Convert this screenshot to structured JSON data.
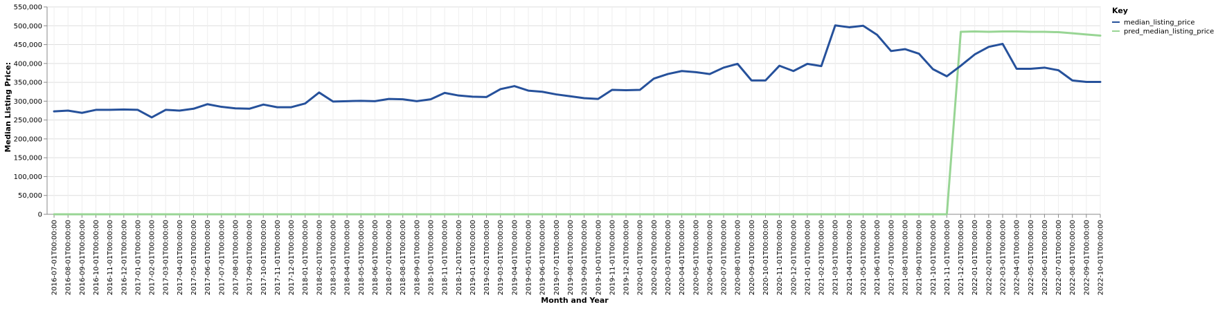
{
  "chart_data": {
    "type": "line",
    "xlabel": "Month and Year",
    "ylabel": "Median Listing Price:",
    "ylim": [
      0,
      550000
    ],
    "y_ticks": [
      "0",
      "50,000",
      "100,000",
      "150,000",
      "200,000",
      "250,000",
      "300,000",
      "350,000",
      "400,000",
      "450,000",
      "500,000",
      "550,000"
    ],
    "y_tick_values": [
      0,
      50000,
      100000,
      150000,
      200000,
      250000,
      300000,
      350000,
      400000,
      450000,
      500000,
      550000
    ],
    "grid": true,
    "legend": {
      "title": "Key",
      "placement": "right"
    },
    "x": [
      "2016-07-01T00:00:00",
      "2016-08-01T00:00:00",
      "2016-09-01T00:00:00",
      "2016-10-01T00:00:00",
      "2016-11-01T00:00:00",
      "2016-12-01T00:00:00",
      "2017-01-01T00:00:00",
      "2017-02-01T00:00:00",
      "2017-03-01T00:00:00",
      "2017-04-01T00:00:00",
      "2017-05-01T00:00:00",
      "2017-06-01T00:00:00",
      "2017-07-01T00:00:00",
      "2017-08-01T00:00:00",
      "2017-09-01T00:00:00",
      "2017-10-01T00:00:00",
      "2017-11-01T00:00:00",
      "2017-12-01T00:00:00",
      "2018-01-01T00:00:00",
      "2018-02-01T00:00:00",
      "2018-03-01T00:00:00",
      "2018-04-01T00:00:00",
      "2018-05-01T00:00:00",
      "2018-06-01T00:00:00",
      "2018-07-01T00:00:00",
      "2018-08-01T00:00:00",
      "2018-09-01T00:00:00",
      "2018-10-01T00:00:00",
      "2018-11-01T00:00:00",
      "2018-12-01T00:00:00",
      "2019-01-01T00:00:00",
      "2019-02-01T00:00:00",
      "2019-03-01T00:00:00",
      "2019-04-01T00:00:00",
      "2019-05-01T00:00:00",
      "2019-06-01T00:00:00",
      "2019-07-01T00:00:00",
      "2019-08-01T00:00:00",
      "2019-09-01T00:00:00",
      "2019-10-01T00:00:00",
      "2019-11-01T00:00:00",
      "2019-12-01T00:00:00",
      "2020-01-01T00:00:00",
      "2020-02-01T00:00:00",
      "2020-03-01T00:00:00",
      "2020-04-01T00:00:00",
      "2020-05-01T00:00:00",
      "2020-06-01T00:00:00",
      "2020-07-01T00:00:00",
      "2020-08-01T00:00:00",
      "2020-09-01T00:00:00",
      "2020-10-01T00:00:00",
      "2020-11-01T00:00:00",
      "2020-12-01T00:00:00",
      "2021-01-01T00:00:00",
      "2021-02-01T00:00:00",
      "2021-03-01T00:00:00",
      "2021-04-01T00:00:00",
      "2021-05-01T00:00:00",
      "2021-06-01T00:00:00",
      "2021-07-01T00:00:00",
      "2021-08-01T00:00:00",
      "2021-09-01T00:00:00",
      "2021-10-01T00:00:00",
      "2021-11-01T00:00:00",
      "2021-12-01T00:00:00",
      "2022-01-01T00:00:00",
      "2022-02-01T00:00:00",
      "2022-03-01T00:00:00",
      "2022-04-01T00:00:00",
      "2022-05-01T00:00:00",
      "2022-06-01T00:00:00",
      "2022-07-01T00:00:00",
      "2022-08-01T00:00:00",
      "2022-09-01T00:00:00",
      "2022-10-01T00:00:00"
    ],
    "series": [
      {
        "name": "median_listing_price",
        "color": "#26519b",
        "values": [
          273000,
          275000,
          269000,
          277000,
          277000,
          278000,
          277000,
          257000,
          277000,
          275000,
          280000,
          292000,
          285000,
          281000,
          280000,
          291000,
          284000,
          284000,
          294000,
          323000,
          299000,
          300000,
          301000,
          300000,
          306000,
          305000,
          300000,
          305000,
          322000,
          315000,
          312000,
          311000,
          332000,
          340000,
          328000,
          325000,
          318000,
          313000,
          308000,
          306000,
          330000,
          329000,
          330000,
          360000,
          372000,
          380000,
          377000,
          372000,
          389000,
          399000,
          355000,
          355000,
          394000,
          380000,
          399000,
          393000,
          501000,
          496000,
          500000,
          476000,
          433000,
          438000,
          426000,
          385000,
          366000,
          394000,
          424000,
          444000,
          452000,
          386000,
          386000,
          389000,
          382000,
          355000,
          351000,
          351000
        ]
      },
      {
        "name": "pred_median_listing_price",
        "color": "#98d594",
        "values": [
          0,
          0,
          0,
          0,
          0,
          0,
          0,
          0,
          0,
          0,
          0,
          0,
          0,
          0,
          0,
          0,
          0,
          0,
          0,
          0,
          0,
          0,
          0,
          0,
          0,
          0,
          0,
          0,
          0,
          0,
          0,
          0,
          0,
          0,
          0,
          0,
          0,
          0,
          0,
          0,
          0,
          0,
          0,
          0,
          0,
          0,
          0,
          0,
          0,
          0,
          0,
          0,
          0,
          0,
          0,
          0,
          0,
          0,
          0,
          0,
          0,
          0,
          0,
          0,
          0,
          484000,
          485000,
          484000,
          485000,
          485000,
          484000,
          484000,
          483000,
          480000,
          477000,
          474000
        ]
      }
    ]
  }
}
